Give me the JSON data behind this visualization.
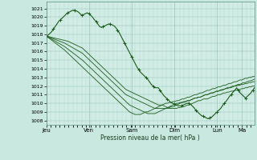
{
  "xlabel": "Pression niveau de la mer( hPa )",
  "bg_color": "#c8e8e0",
  "plot_bg_color": "#d0ece4",
  "line_color": "#1a5c1a",
  "ylim": [
    1007.5,
    1021.8
  ],
  "yticks": [
    1008,
    1009,
    1010,
    1011,
    1012,
    1013,
    1014,
    1015,
    1016,
    1017,
    1018,
    1019,
    1020,
    1021
  ],
  "xtick_labels": [
    "Jeu",
    "Ven",
    "Sam",
    "Dim",
    "Lun",
    "Ma"
  ],
  "xtick_positions": [
    0,
    24,
    48,
    72,
    96,
    110
  ],
  "xlim": [
    0,
    117
  ],
  "n_points": 120,
  "observed_line": [
    1017.8,
    1017.9,
    1018.1,
    1018.3,
    1018.6,
    1018.9,
    1019.2,
    1019.5,
    1019.7,
    1019.9,
    1020.1,
    1020.3,
    1020.5,
    1020.6,
    1020.7,
    1020.8,
    1020.8,
    1020.7,
    1020.6,
    1020.4,
    1020.2,
    1020.3,
    1020.4,
    1020.5,
    1020.4,
    1020.2,
    1020.0,
    1019.7,
    1019.5,
    1019.2,
    1018.9,
    1018.8,
    1018.9,
    1019.0,
    1019.1,
    1019.2,
    1019.2,
    1019.1,
    1019.0,
    1018.8,
    1018.5,
    1018.2,
    1017.8,
    1017.4,
    1017.0,
    1016.6,
    1016.2,
    1015.8,
    1015.4,
    1015.0,
    1014.6,
    1014.2,
    1013.9,
    1013.6,
    1013.4,
    1013.2,
    1013.0,
    1012.8,
    1012.5,
    1012.2,
    1012.0,
    1011.8,
    1011.8,
    1011.8,
    1011.5,
    1011.2,
    1010.9,
    1010.7,
    1010.5,
    1010.3,
    1010.1,
    1010.0,
    1009.9,
    1009.8,
    1009.7,
    1009.7,
    1009.7,
    1009.8,
    1009.9,
    1010.0,
    1010.0,
    1009.9,
    1009.7,
    1009.5,
    1009.2,
    1009.0,
    1008.8,
    1008.6,
    1008.5,
    1008.4,
    1008.3,
    1008.2,
    1008.3,
    1008.4,
    1008.6,
    1008.8,
    1009.0,
    1009.2,
    1009.4,
    1009.7,
    1010.0,
    1010.2,
    1010.5,
    1010.8,
    1011.0,
    1011.3,
    1011.5,
    1011.8,
    1011.5,
    1011.2,
    1011.0,
    1010.8,
    1010.6,
    1010.8,
    1011.0,
    1011.2,
    1011.5,
    1011.8
  ],
  "forecast_lines": [
    [
      1017.8,
      1017.75,
      1017.7,
      1017.65,
      1017.6,
      1017.55,
      1017.5,
      1017.45,
      1017.4,
      1017.35,
      1017.3,
      1017.25,
      1017.2,
      1017.1,
      1017.0,
      1016.9,
      1016.8,
      1016.7,
      1016.6,
      1016.5,
      1016.4,
      1016.2,
      1016.0,
      1015.8,
      1015.6,
      1015.4,
      1015.2,
      1015.0,
      1014.8,
      1014.6,
      1014.4,
      1014.2,
      1014.0,
      1013.8,
      1013.6,
      1013.4,
      1013.2,
      1013.0,
      1012.8,
      1012.6,
      1012.4,
      1012.2,
      1012.0,
      1011.8,
      1011.6,
      1011.5,
      1011.4,
      1011.3,
      1011.2,
      1011.1,
      1011.0,
      1010.9,
      1010.8,
      1010.7,
      1010.6,
      1010.5,
      1010.4,
      1010.3,
      1010.2,
      1010.1,
      1010.0,
      1009.9,
      1009.8,
      1009.8,
      1009.8,
      1009.7,
      1009.6,
      1009.5,
      1009.4,
      1009.4,
      1009.4,
      1009.4,
      1009.4,
      1009.5,
      1009.5,
      1009.6,
      1009.6,
      1009.7,
      1009.8,
      1009.8,
      1009.9,
      1010.0,
      1010.1,
      1010.2,
      1010.3,
      1010.3,
      1010.4,
      1010.5,
      1010.5,
      1010.5,
      1010.6,
      1010.7,
      1010.8,
      1010.8,
      1010.9,
      1011.0,
      1011.0,
      1011.1,
      1011.2,
      1011.2,
      1011.3,
      1011.3,
      1011.4,
      1011.4,
      1011.5,
      1011.5,
      1011.6,
      1011.6,
      1011.7,
      1011.7,
      1011.8,
      1011.8,
      1011.9,
      1011.9,
      1012.0,
      1012.0
    ],
    [
      1017.8,
      1017.72,
      1017.64,
      1017.56,
      1017.48,
      1017.4,
      1017.32,
      1017.24,
      1017.16,
      1017.08,
      1017.0,
      1016.88,
      1016.76,
      1016.64,
      1016.52,
      1016.4,
      1016.28,
      1016.16,
      1016.04,
      1015.92,
      1015.8,
      1015.6,
      1015.4,
      1015.2,
      1015.0,
      1014.8,
      1014.6,
      1014.4,
      1014.2,
      1014.0,
      1013.8,
      1013.6,
      1013.4,
      1013.2,
      1013.0,
      1012.8,
      1012.6,
      1012.4,
      1012.2,
      1012.0,
      1011.8,
      1011.6,
      1011.4,
      1011.2,
      1011.0,
      1010.9,
      1010.8,
      1010.7,
      1010.6,
      1010.5,
      1010.4,
      1010.3,
      1010.2,
      1010.1,
      1010.0,
      1009.9,
      1009.8,
      1009.7,
      1009.6,
      1009.5,
      1009.4,
      1009.4,
      1009.4,
      1009.4,
      1009.4,
      1009.4,
      1009.4,
      1009.4,
      1009.5,
      1009.6,
      1009.6,
      1009.7,
      1009.8,
      1009.9,
      1010.0,
      1010.1,
      1010.1,
      1010.2,
      1010.3,
      1010.3,
      1010.4,
      1010.5,
      1010.6,
      1010.6,
      1010.7,
      1010.7,
      1010.8,
      1010.9,
      1011.0,
      1011.0,
      1011.1,
      1011.2,
      1011.2,
      1011.3,
      1011.4,
      1011.4,
      1011.5,
      1011.5,
      1011.6,
      1011.7,
      1011.7,
      1011.8,
      1011.8,
      1011.9,
      1012.0,
      1012.0,
      1012.1,
      1012.1,
      1012.2,
      1012.2,
      1012.3,
      1012.3,
      1012.4,
      1012.4,
      1012.5,
      1012.5
    ],
    [
      1017.8,
      1017.68,
      1017.56,
      1017.44,
      1017.32,
      1017.2,
      1017.08,
      1016.96,
      1016.84,
      1016.72,
      1016.6,
      1016.44,
      1016.28,
      1016.12,
      1015.96,
      1015.8,
      1015.64,
      1015.48,
      1015.32,
      1015.16,
      1015.0,
      1014.8,
      1014.6,
      1014.4,
      1014.2,
      1014.0,
      1013.8,
      1013.6,
      1013.4,
      1013.2,
      1013.0,
      1012.8,
      1012.6,
      1012.4,
      1012.2,
      1012.0,
      1011.8,
      1011.6,
      1011.4,
      1011.2,
      1011.0,
      1010.8,
      1010.6,
      1010.4,
      1010.2,
      1010.0,
      1009.8,
      1009.7,
      1009.6,
      1009.5,
      1009.4,
      1009.3,
      1009.2,
      1009.1,
      1009.0,
      1008.9,
      1008.8,
      1008.8,
      1008.8,
      1008.8,
      1008.8,
      1008.9,
      1009.0,
      1009.1,
      1009.2,
      1009.3,
      1009.4,
      1009.5,
      1009.6,
      1009.7,
      1009.8,
      1009.9,
      1010.0,
      1010.0,
      1010.1,
      1010.1,
      1010.2,
      1010.2,
      1010.3,
      1010.3,
      1010.4,
      1010.5,
      1010.6,
      1010.6,
      1010.7,
      1010.7,
      1010.8,
      1010.9,
      1011.0,
      1011.0,
      1011.1,
      1011.2,
      1011.2,
      1011.3,
      1011.4,
      1011.4,
      1011.5,
      1011.6,
      1011.6,
      1011.7,
      1011.8,
      1011.8,
      1011.9,
      1012.0,
      1012.0,
      1012.1,
      1012.2,
      1012.2,
      1012.3,
      1012.4,
      1012.4,
      1012.5,
      1012.6,
      1012.6,
      1012.7,
      1012.8
    ],
    [
      1017.8,
      1017.64,
      1017.48,
      1017.32,
      1017.16,
      1017.0,
      1016.84,
      1016.68,
      1016.52,
      1016.36,
      1016.2,
      1016.0,
      1015.8,
      1015.6,
      1015.4,
      1015.2,
      1015.0,
      1014.8,
      1014.6,
      1014.4,
      1014.2,
      1014.0,
      1013.8,
      1013.6,
      1013.4,
      1013.2,
      1013.0,
      1012.8,
      1012.6,
      1012.4,
      1012.2,
      1012.0,
      1011.8,
      1011.6,
      1011.4,
      1011.2,
      1011.0,
      1010.8,
      1010.6,
      1010.4,
      1010.2,
      1010.0,
      1009.8,
      1009.6,
      1009.4,
      1009.2,
      1009.0,
      1008.9,
      1008.8,
      1008.7,
      1008.7,
      1008.7,
      1008.7,
      1008.8,
      1008.9,
      1009.0,
      1009.0,
      1009.1,
      1009.2,
      1009.3,
      1009.4,
      1009.5,
      1009.6,
      1009.7,
      1009.8,
      1009.9,
      1010.0,
      1010.0,
      1010.1,
      1010.1,
      1010.2,
      1010.2,
      1010.3,
      1010.3,
      1010.4,
      1010.5,
      1010.5,
      1010.6,
      1010.7,
      1010.7,
      1010.8,
      1010.9,
      1011.0,
      1011.0,
      1011.1,
      1011.2,
      1011.2,
      1011.3,
      1011.4,
      1011.5,
      1011.5,
      1011.6,
      1011.7,
      1011.7,
      1011.8,
      1011.9,
      1011.9,
      1012.0,
      1012.1,
      1012.1,
      1012.2,
      1012.3,
      1012.3,
      1012.4,
      1012.5,
      1012.5,
      1012.6,
      1012.7,
      1012.7,
      1012.8,
      1012.9,
      1012.9,
      1013.0,
      1013.0,
      1013.1,
      1013.1
    ]
  ]
}
